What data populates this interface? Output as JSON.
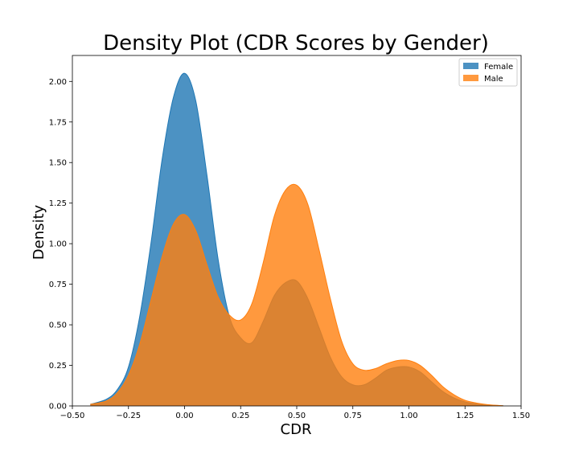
{
  "chart_data": {
    "type": "area",
    "title": "Density Plot (CDR Scores by Gender)",
    "xlabel": "CDR",
    "ylabel": "Density",
    "xlim": [
      -0.5,
      1.5
    ],
    "ylim": [
      0,
      2.16
    ],
    "xticks": [
      "−0.50",
      "−0.25",
      "0.00",
      "0.25",
      "0.50",
      "0.75",
      "1.00",
      "1.25",
      "1.50"
    ],
    "xtick_values": [
      -0.5,
      -0.25,
      0,
      0.25,
      0.5,
      0.75,
      1.0,
      1.25,
      1.5
    ],
    "yticks": [
      "0.00",
      "0.25",
      "0.50",
      "0.75",
      "1.00",
      "1.25",
      "1.50",
      "1.75",
      "2.00"
    ],
    "ytick_values": [
      0,
      0.25,
      0.5,
      0.75,
      1.0,
      1.25,
      1.5,
      1.75,
      2.0
    ],
    "grid": false,
    "legend_position": "top-right",
    "series": [
      {
        "name": "Female",
        "color": "#1f77b4",
        "x": [
          -0.42,
          -0.35,
          -0.3,
          -0.25,
          -0.2,
          -0.15,
          -0.1,
          -0.05,
          0.0,
          0.05,
          0.1,
          0.15,
          0.2,
          0.25,
          0.3,
          0.35,
          0.4,
          0.45,
          0.5,
          0.55,
          0.6,
          0.65,
          0.7,
          0.75,
          0.8,
          0.85,
          0.9,
          0.95,
          1.0,
          1.05,
          1.1,
          1.15,
          1.2,
          1.25,
          1.3,
          1.35,
          1.4,
          1.42
        ],
        "values": [
          0.01,
          0.04,
          0.1,
          0.24,
          0.55,
          1.0,
          1.52,
          1.9,
          2.05,
          1.88,
          1.42,
          0.9,
          0.55,
          0.42,
          0.39,
          0.52,
          0.68,
          0.76,
          0.77,
          0.66,
          0.48,
          0.3,
          0.18,
          0.13,
          0.13,
          0.17,
          0.22,
          0.24,
          0.24,
          0.21,
          0.15,
          0.09,
          0.05,
          0.025,
          0.012,
          0.005,
          0.002,
          0.001
        ]
      },
      {
        "name": "Male",
        "color": "#ff7f0e",
        "x": [
          -0.42,
          -0.35,
          -0.3,
          -0.25,
          -0.2,
          -0.15,
          -0.1,
          -0.05,
          0.0,
          0.05,
          0.1,
          0.15,
          0.2,
          0.25,
          0.3,
          0.35,
          0.4,
          0.45,
          0.5,
          0.55,
          0.6,
          0.65,
          0.7,
          0.75,
          0.8,
          0.85,
          0.9,
          0.95,
          1.0,
          1.05,
          1.1,
          1.15,
          1.2,
          1.25,
          1.3,
          1.35,
          1.4,
          1.42
        ],
        "values": [
          0.01,
          0.03,
          0.08,
          0.19,
          0.38,
          0.65,
          0.92,
          1.12,
          1.18,
          1.08,
          0.87,
          0.67,
          0.56,
          0.53,
          0.63,
          0.88,
          1.17,
          1.33,
          1.36,
          1.24,
          0.96,
          0.66,
          0.4,
          0.26,
          0.22,
          0.23,
          0.26,
          0.28,
          0.28,
          0.25,
          0.19,
          0.12,
          0.07,
          0.035,
          0.018,
          0.008,
          0.003,
          0.001
        ]
      }
    ]
  }
}
